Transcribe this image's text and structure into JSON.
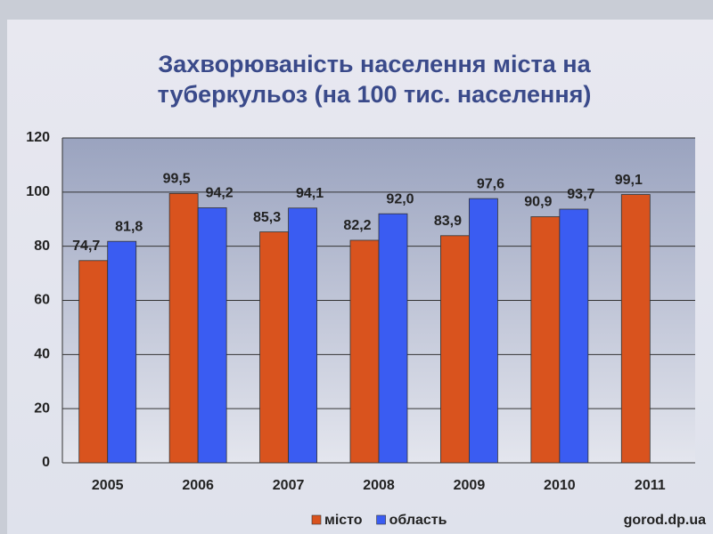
{
  "chart_data": {
    "type": "bar",
    "title": "Захворюваність населення  міста на туберкульоз (на 100 тис. населення)",
    "categories": [
      "2005",
      "2006",
      "2007",
      "2008",
      "2009",
      "2010",
      "2011"
    ],
    "series": [
      {
        "name": "місто",
        "color": "#d9531e",
        "values": [
          74.7,
          99.5,
          85.3,
          82.2,
          83.9,
          90.9,
          99.1
        ],
        "value_labels": [
          "74,7",
          "99,5",
          "85,3",
          "82,2",
          "83,9",
          "90,9",
          "99,1"
        ]
      },
      {
        "name": "область",
        "color": "#3a5cf2",
        "values": [
          81.8,
          94.2,
          94.1,
          92.0,
          97.6,
          93.7,
          null
        ],
        "value_labels": [
          "81,8",
          "94,2",
          "94,1",
          "92,0",
          "97,6",
          "93,7",
          null
        ]
      }
    ],
    "ylim": [
      0,
      120
    ],
    "yticks": [
      0,
      20,
      40,
      60,
      80,
      100,
      120
    ],
    "grid": true,
    "legend": "bottom"
  },
  "watermark": "gorod.dp.ua"
}
